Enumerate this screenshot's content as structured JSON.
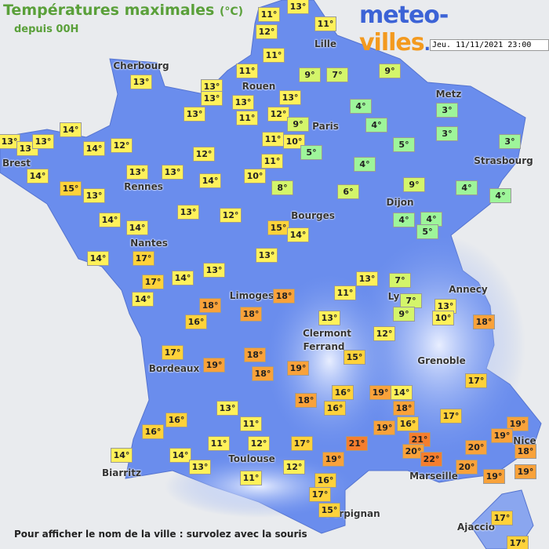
{
  "header": {
    "title": "Températures maximales",
    "unit": "(°C)",
    "subtitle": "depuis 00H",
    "logo": [
      "meteo-",
      "villes",
      ".com"
    ],
    "timestamp": "Jeu. 11/11/2021 23:00"
  },
  "cities": [
    "Cherbourg",
    "Rouen",
    "Lille",
    "Metz",
    "Paris",
    "Brest",
    "Rennes",
    "Strasbourg",
    "Dijon",
    "Nantes",
    "Bourges",
    "Limoges",
    "Annecy",
    "Ly",
    "Clermont",
    "Ferrand",
    "Grenoble",
    "Bordeaux",
    "Nice",
    "Toulouse",
    "Marseille",
    "Biarritz",
    "Perpignan",
    "Ajaccio"
  ],
  "temperatures": [
    "13°",
    "11°",
    "12°",
    "11°",
    "11°",
    "13°",
    "13°",
    "13°",
    "11°",
    "9°",
    "7°",
    "9°",
    "13°",
    "13°",
    "13°",
    "11°",
    "12°",
    "9°",
    "4°",
    "3°",
    "14°",
    "13°",
    "13°",
    "13°",
    "14°",
    "12°",
    "11°",
    "10°",
    "5°",
    "4°",
    "5°",
    "3°",
    "3°",
    "12°",
    "11°",
    "4°",
    "14°",
    "13°",
    "13°",
    "14°",
    "10°",
    "15°",
    "13°",
    "8°",
    "6°",
    "9°",
    "4°",
    "4°",
    "13°",
    "12°",
    "14°",
    "14°",
    "15°",
    "14°",
    "4°",
    "4°",
    "5°",
    "14°",
    "17°",
    "13°",
    "17°",
    "14°",
    "13°",
    "13°",
    "7°",
    "14°",
    "11°",
    "18°",
    "7°",
    "13°",
    "18°",
    "18°",
    "9°",
    "10°",
    "18°",
    "16°",
    "13°",
    "12°",
    "17°",
    "18°",
    "15°",
    "19°",
    "18°",
    "19°",
    "17°",
    "16°",
    "19°",
    "14°",
    "18°",
    "16°",
    "18°",
    "13°",
    "17°",
    "16°",
    "11°",
    "16°",
    "19°",
    "16°",
    "19°",
    "19°",
    "21°",
    "21°",
    "11°",
    "12°",
    "17°",
    "20°",
    "18°",
    "20°",
    "22°",
    "14°",
    "14°",
    "13°",
    "19°",
    "20°",
    "19°",
    "19°",
    "12°",
    "11°",
    "16°",
    "17°",
    "15°",
    "17°",
    "17°"
  ],
  "footer": "Pour afficher le nom de la ville : survolez avec la souris"
}
